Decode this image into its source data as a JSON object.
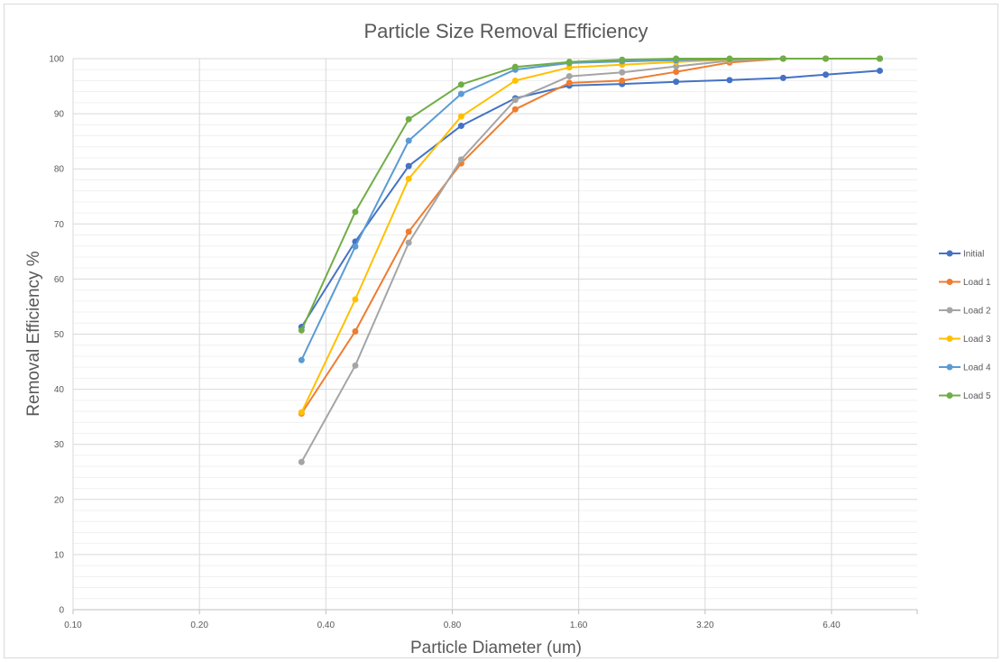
{
  "chart_data": {
    "type": "line",
    "title": "Particle Size Removal Efficiency",
    "xlabel": "Particle Diameter (um)",
    "ylabel": "Removal Efficiency  %",
    "x_scale": "log2",
    "xlim": [
      0.1,
      10.24
    ],
    "ylim": [
      0,
      100
    ],
    "x_ticks": [
      "0.10",
      "0.20",
      "0.40",
      "0.80",
      "1.60",
      "3.20",
      "6.40"
    ],
    "y_ticks": [
      "0",
      "10",
      "20",
      "30",
      "40",
      "50",
      "60",
      "70",
      "80",
      "90",
      "100"
    ],
    "grid": true,
    "legend_position": "right",
    "x": [
      0.35,
      0.47,
      0.63,
      0.84,
      1.13,
      1.52,
      2.03,
      2.73,
      3.66,
      4.91,
      6.2,
      8.34
    ],
    "series": [
      {
        "name": "Initial",
        "color": "#4472C4",
        "values": [
          51.3,
          66.8,
          80.5,
          87.8,
          92.8,
          95.1,
          95.4,
          95.8,
          96.1,
          96.5,
          97.1,
          97.8
        ]
      },
      {
        "name": "Load 1",
        "color": "#ED7D31",
        "values": [
          35.6,
          50.5,
          68.6,
          81.0,
          90.8,
          95.6,
          96.0,
          97.6,
          99.3,
          100.0,
          100.0,
          100.0
        ]
      },
      {
        "name": "Load 2",
        "color": "#A5A5A5",
        "values": [
          26.8,
          44.3,
          66.6,
          81.7,
          92.5,
          96.8,
          97.5,
          98.6,
          99.6,
          100.0,
          100.0,
          100.0
        ]
      },
      {
        "name": "Load 3",
        "color": "#FFC000",
        "values": [
          35.8,
          56.3,
          78.2,
          89.5,
          96.0,
          98.4,
          98.9,
          99.4,
          99.8,
          100.0,
          100.0,
          100.0
        ]
      },
      {
        "name": "Load 4",
        "color": "#5B9BD5",
        "values": [
          45.3,
          65.9,
          85.1,
          93.6,
          98.0,
          99.2,
          99.5,
          99.7,
          99.9,
          100.0,
          100.0,
          100.0
        ]
      },
      {
        "name": "Load 5",
        "color": "#70AD47",
        "values": [
          50.7,
          72.2,
          89.0,
          95.3,
          98.5,
          99.4,
          99.8,
          100.0,
          100.0,
          100.0,
          100.0,
          100.0
        ]
      }
    ]
  }
}
